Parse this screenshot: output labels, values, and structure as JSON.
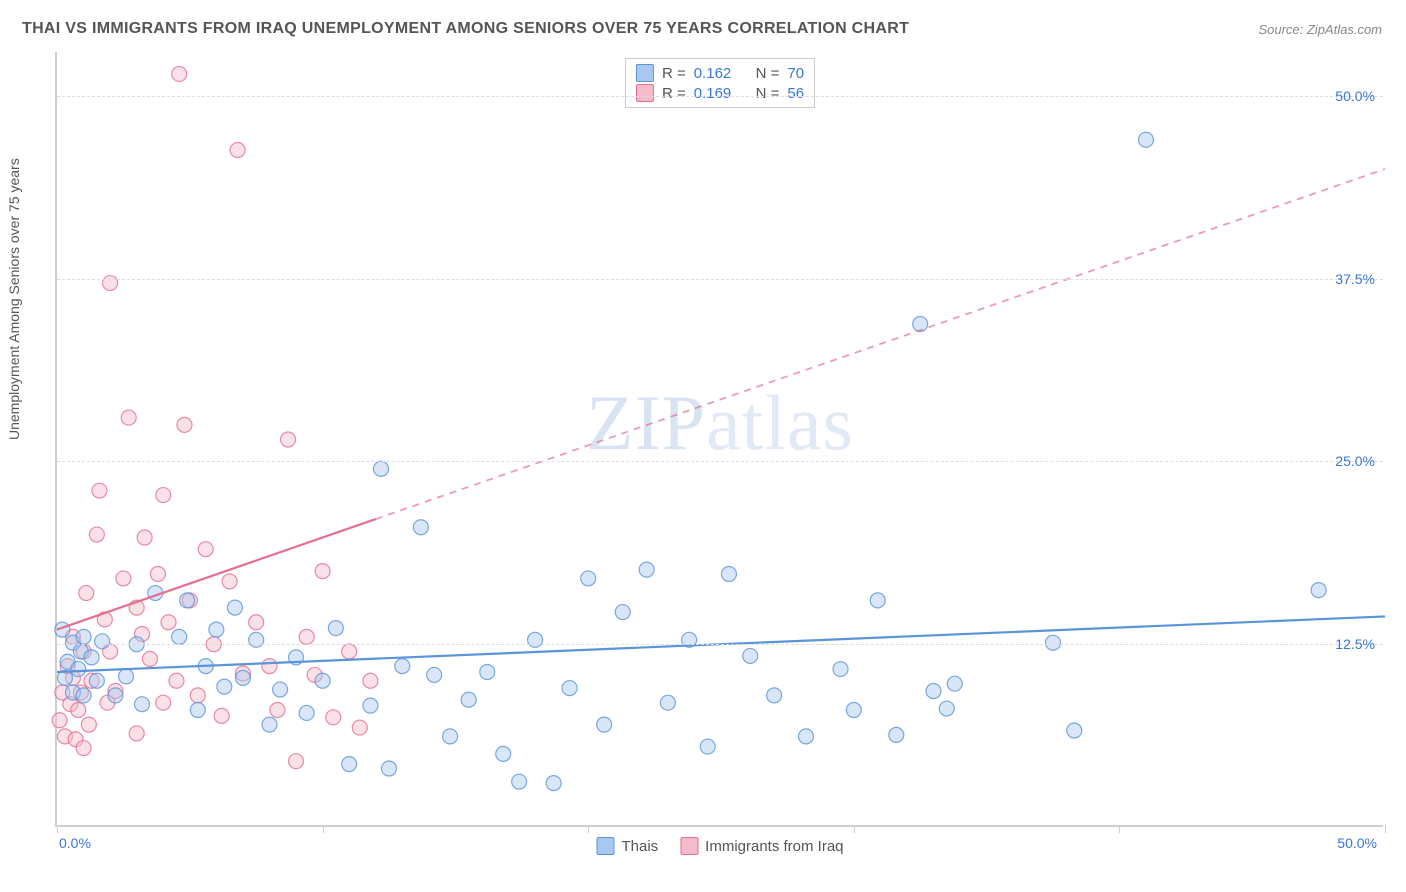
{
  "title": "THAI VS IMMIGRANTS FROM IRAQ UNEMPLOYMENT AMONG SENIORS OVER 75 YEARS CORRELATION CHART",
  "source": "Source: ZipAtlas.com",
  "ylabel": "Unemployment Among Seniors over 75 years",
  "watermark": "ZIPatlas",
  "chart": {
    "type": "scatter",
    "background_color": "#ffffff",
    "grid_color": "#dddddd",
    "axis_color": "#cfcfcf",
    "xlim": [
      0,
      50
    ],
    "ylim": [
      0,
      53
    ],
    "x_ticks": [
      0,
      10,
      20,
      30,
      40,
      50
    ],
    "y_ticks": [
      12.5,
      25.0,
      37.5,
      50.0
    ],
    "x_tick_labels": {
      "0": "0.0%",
      "50": "50.0%"
    },
    "y_tick_labels": [
      "12.5%",
      "25.0%",
      "37.5%",
      "50.0%"
    ],
    "marker_radius": 7.5,
    "marker_opacity": 0.45,
    "line_width": 2.2,
    "title_fontsize": 16,
    "label_fontsize": 14,
    "tick_fontsize": 14,
    "tick_color": "#3a76d6"
  },
  "series": [
    {
      "name": "Thais",
      "color_fill": "#a9c8ef",
      "color_stroke": "#5a94da",
      "r": "0.162",
      "n": "70",
      "regression": {
        "x1": 0,
        "y1": 10.6,
        "x2": 50,
        "y2": 14.4,
        "solid_until_x": 50
      },
      "points": [
        [
          0.2,
          13.5
        ],
        [
          0.3,
          10.2
        ],
        [
          0.4,
          11.3
        ],
        [
          0.6,
          9.2
        ],
        [
          0.6,
          12.6
        ],
        [
          0.8,
          10.8
        ],
        [
          0.9,
          12.0
        ],
        [
          1.0,
          13.0
        ],
        [
          1.0,
          9.0
        ],
        [
          1.3,
          11.6
        ],
        [
          1.5,
          10.0
        ],
        [
          1.7,
          12.7
        ],
        [
          2.2,
          9.0
        ],
        [
          2.6,
          10.3
        ],
        [
          3.0,
          12.5
        ],
        [
          3.2,
          8.4
        ],
        [
          3.7,
          16.0
        ],
        [
          4.6,
          13.0
        ],
        [
          4.9,
          15.5
        ],
        [
          5.3,
          8.0
        ],
        [
          5.6,
          11.0
        ],
        [
          6.0,
          13.5
        ],
        [
          6.3,
          9.6
        ],
        [
          6.7,
          15.0
        ],
        [
          7.0,
          10.2
        ],
        [
          7.5,
          12.8
        ],
        [
          8.0,
          7.0
        ],
        [
          8.4,
          9.4
        ],
        [
          9.0,
          11.6
        ],
        [
          9.4,
          7.8
        ],
        [
          10.0,
          10.0
        ],
        [
          10.5,
          13.6
        ],
        [
          11.0,
          4.3
        ],
        [
          11.8,
          8.3
        ],
        [
          12.2,
          24.5
        ],
        [
          12.5,
          4.0
        ],
        [
          13.0,
          11.0
        ],
        [
          13.7,
          20.5
        ],
        [
          14.2,
          10.4
        ],
        [
          14.8,
          6.2
        ],
        [
          15.5,
          8.7
        ],
        [
          16.2,
          10.6
        ],
        [
          16.8,
          5.0
        ],
        [
          17.4,
          3.1
        ],
        [
          18.0,
          12.8
        ],
        [
          18.7,
          3.0
        ],
        [
          19.3,
          9.5
        ],
        [
          20.0,
          17.0
        ],
        [
          20.6,
          7.0
        ],
        [
          21.3,
          14.7
        ],
        [
          22.2,
          17.6
        ],
        [
          23.0,
          8.5
        ],
        [
          23.8,
          12.8
        ],
        [
          24.5,
          5.5
        ],
        [
          25.3,
          17.3
        ],
        [
          26.1,
          11.7
        ],
        [
          27.0,
          9.0
        ],
        [
          28.2,
          6.2
        ],
        [
          29.5,
          10.8
        ],
        [
          30.0,
          8.0
        ],
        [
          30.9,
          15.5
        ],
        [
          31.6,
          6.3
        ],
        [
          32.5,
          34.4
        ],
        [
          33.0,
          9.3
        ],
        [
          33.5,
          8.1
        ],
        [
          33.8,
          9.8
        ],
        [
          37.5,
          12.6
        ],
        [
          38.3,
          6.6
        ],
        [
          41.0,
          47.0
        ],
        [
          47.5,
          16.2
        ]
      ]
    },
    {
      "name": "Immigrants from Iraq",
      "color_fill": "#f4bccb",
      "color_stroke": "#e46f8f",
      "r": "0.169",
      "n": "56",
      "regression": {
        "x1": 0,
        "y1": 13.5,
        "x2": 50,
        "y2": 45.0,
        "solid_until_x": 12
      },
      "points": [
        [
          0.1,
          7.3
        ],
        [
          0.2,
          9.2
        ],
        [
          0.3,
          6.2
        ],
        [
          0.4,
          11.0
        ],
        [
          0.5,
          8.4
        ],
        [
          0.6,
          10.2
        ],
        [
          0.6,
          13.0
        ],
        [
          0.7,
          6.0
        ],
        [
          0.8,
          8.0
        ],
        [
          0.9,
          9.2
        ],
        [
          1.0,
          12.0
        ],
        [
          1.0,
          5.4
        ],
        [
          1.1,
          16.0
        ],
        [
          1.2,
          7.0
        ],
        [
          1.3,
          10.0
        ],
        [
          1.5,
          20.0
        ],
        [
          1.6,
          23.0
        ],
        [
          1.8,
          14.2
        ],
        [
          1.9,
          8.5
        ],
        [
          2.0,
          12.0
        ],
        [
          2.0,
          37.2
        ],
        [
          2.2,
          9.3
        ],
        [
          2.5,
          17.0
        ],
        [
          2.7,
          28.0
        ],
        [
          3.0,
          15.0
        ],
        [
          3.0,
          6.4
        ],
        [
          3.2,
          13.2
        ],
        [
          3.3,
          19.8
        ],
        [
          3.5,
          11.5
        ],
        [
          3.8,
          17.3
        ],
        [
          4.0,
          8.5
        ],
        [
          4.0,
          22.7
        ],
        [
          4.2,
          14.0
        ],
        [
          4.5,
          10.0
        ],
        [
          4.6,
          51.5
        ],
        [
          4.8,
          27.5
        ],
        [
          5.0,
          15.5
        ],
        [
          5.3,
          9.0
        ],
        [
          5.6,
          19.0
        ],
        [
          5.9,
          12.5
        ],
        [
          6.2,
          7.6
        ],
        [
          6.5,
          16.8
        ],
        [
          6.8,
          46.3
        ],
        [
          7.0,
          10.5
        ],
        [
          7.5,
          14.0
        ],
        [
          8.0,
          11.0
        ],
        [
          8.3,
          8.0
        ],
        [
          8.7,
          26.5
        ],
        [
          9.0,
          4.5
        ],
        [
          9.4,
          13.0
        ],
        [
          9.7,
          10.4
        ],
        [
          10.0,
          17.5
        ],
        [
          10.4,
          7.5
        ],
        [
          11.0,
          12.0
        ],
        [
          11.4,
          6.8
        ],
        [
          11.8,
          10.0
        ]
      ]
    }
  ],
  "legend_top": {
    "r_label": "R =",
    "n_label": "N ="
  },
  "legend_bottom": {
    "items": [
      "Thais",
      "Immigrants from Iraq"
    ]
  }
}
